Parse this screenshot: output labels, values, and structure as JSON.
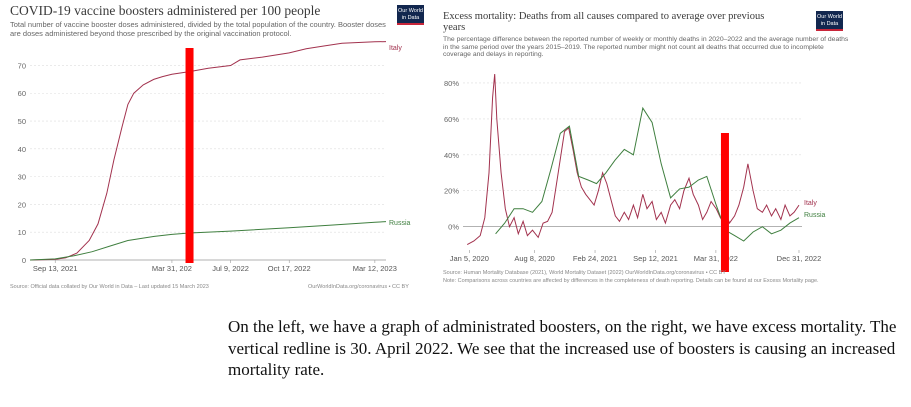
{
  "left": {
    "title": "COVID-19 vaccine boosters administered per 100 people",
    "subtitle": "Total number of vaccine booster doses administered, divided by the total population of the country. Booster doses are doses administered beyond those prescribed by the original vaccination protocol.",
    "logo": "Our World in Data",
    "source": "Source: Official data collated by Our World in Data – Last updated 15 March 2023",
    "url": "OurWorldInData.org/coronavirus • CC BY"
  },
  "right": {
    "title": "Excess mortality: Deaths from all causes compared to average over previous years",
    "subtitle": "The percentage difference between the reported number of weekly or monthly deaths in 2020–2022 and the average number of deaths in the same period over the years 2015–2019. The reported number might not count all deaths that occurred due to incomplete coverage and delays in reporting.",
    "logo": "Our World in Data",
    "source": "Source: Human Mortality Database (2021), World Mortality Dataset (2022)",
    "url": "OurWorldInData.org/coronavirus • CC BY",
    "note": "Note: Comparisons across countries are affected by differences in the completeness of death reporting. Details can be found at our Excess Mortality page."
  },
  "caption": "On the left, we have a graph of administrated boosters, on the right, we have excess mortality. The vertical redline is 30. April 2022. We see that the increased use of boosters is causing an increased mortality rate.",
  "colors": {
    "italy": "#a2324e",
    "russia": "#3f7f3f",
    "marker": "#ff0000",
    "grid": "#dddddd"
  },
  "chart_data": [
    {
      "type": "line",
      "title": "COVID-19 vaccine boosters administered per 100 people",
      "xlabel": "",
      "ylabel": "",
      "x_ticks": [
        "Sep 13, 2021",
        "Mar 31, 202",
        "Jul 9, 2022",
        "Oct 17, 2022",
        "Mar 12, 2023"
      ],
      "x_tick_values": [
        "2021-09-13",
        "2022-03-31",
        "2022-07-09",
        "2022-10-17",
        "2023-03-12"
      ],
      "y_ticks": [
        0,
        10,
        20,
        30,
        40,
        50,
        60,
        70
      ],
      "ylim": [
        0,
        77
      ],
      "xlim": [
        "2021-08-01",
        "2023-03-31"
      ],
      "grid": true,
      "vertical_marker": "2022-04-30",
      "series": [
        {
          "name": "Italy",
          "color": "#a2324e",
          "points": [
            [
              "2021-08-01",
              0
            ],
            [
              "2021-09-13",
              0.2
            ],
            [
              "2021-10-01",
              0.8
            ],
            [
              "2021-10-20",
              2.5
            ],
            [
              "2021-11-10",
              7
            ],
            [
              "2021-11-25",
              13
            ],
            [
              "2021-12-10",
              24
            ],
            [
              "2021-12-22",
              36
            ],
            [
              "2022-01-05",
              48
            ],
            [
              "2022-01-15",
              56
            ],
            [
              "2022-01-25",
              60
            ],
            [
              "2022-02-10",
              63
            ],
            [
              "2022-02-28",
              65
            ],
            [
              "2022-03-15",
              66
            ],
            [
              "2022-03-31",
              66.8
            ],
            [
              "2022-04-30",
              67.8
            ],
            [
              "2022-06-01",
              69
            ],
            [
              "2022-07-09",
              70
            ],
            [
              "2022-07-25",
              72
            ],
            [
              "2022-09-01",
              73
            ],
            [
              "2022-10-17",
              74.5
            ],
            [
              "2022-11-15",
              76
            ],
            [
              "2022-12-15",
              77
            ],
            [
              "2023-01-15",
              78
            ],
            [
              "2023-03-12",
              78.5
            ],
            [
              "2023-03-31",
              78.6
            ]
          ]
        },
        {
          "name": "Russia",
          "color": "#3f7f3f",
          "points": [
            [
              "2021-08-01",
              0
            ],
            [
              "2021-09-13",
              0.4
            ],
            [
              "2021-10-15",
              1.5
            ],
            [
              "2021-11-15",
              3
            ],
            [
              "2021-12-15",
              5
            ],
            [
              "2022-01-15",
              7
            ],
            [
              "2022-03-01",
              8.5
            ],
            [
              "2022-03-31",
              9.2
            ],
            [
              "2022-04-30",
              9.7
            ],
            [
              "2022-07-09",
              10.4
            ],
            [
              "2022-10-17",
              11.6
            ],
            [
              "2022-12-31",
              12.6
            ],
            [
              "2023-03-12",
              13.6
            ],
            [
              "2023-03-31",
              13.8
            ]
          ]
        }
      ]
    },
    {
      "type": "line",
      "title": "Excess mortality: Deaths from all causes compared to average over previous years",
      "xlabel": "",
      "ylabel": "",
      "x_ticks": [
        "Jan 5, 2020",
        "Aug 8, 2020",
        "Feb 24, 2021",
        "Sep 12, 2021",
        "Mar 31, 2022",
        "Dec 31, 2022"
      ],
      "x_tick_values": [
        "2020-01-05",
        "2020-08-08",
        "2021-02-24",
        "2021-09-12",
        "2022-03-31",
        "2022-12-31"
      ],
      "y_ticks": [
        "0%",
        "20%",
        "40%",
        "60%",
        "80%"
      ],
      "y_tick_values": [
        0,
        20,
        40,
        60,
        80
      ],
      "ylim": [
        -13,
        85
      ],
      "xlim": [
        "2019-12-15",
        "2023-01-10"
      ],
      "grid": true,
      "vertical_marker": "2022-04-30",
      "series": [
        {
          "name": "Italy",
          "color": "#a2324e",
          "points": [
            [
              "2019-12-29",
              -10
            ],
            [
              "2020-01-20",
              -8
            ],
            [
              "2020-02-10",
              -5
            ],
            [
              "2020-02-25",
              5
            ],
            [
              "2020-03-10",
              30
            ],
            [
              "2020-03-22",
              72
            ],
            [
              "2020-03-29",
              85
            ],
            [
              "2020-04-05",
              60
            ],
            [
              "2020-04-19",
              30
            ],
            [
              "2020-05-03",
              10
            ],
            [
              "2020-05-17",
              0
            ],
            [
              "2020-06-01",
              5
            ],
            [
              "2020-06-15",
              -4
            ],
            [
              "2020-07-01",
              3
            ],
            [
              "2020-07-15",
              -5
            ],
            [
              "2020-08-01",
              -2
            ],
            [
              "2020-08-20",
              -6
            ],
            [
              "2020-09-05",
              2
            ],
            [
              "2020-09-20",
              3
            ],
            [
              "2020-10-05",
              8
            ],
            [
              "2020-10-25",
              30
            ],
            [
              "2020-11-15",
              53
            ],
            [
              "2020-11-29",
              55
            ],
            [
              "2020-12-13",
              43
            ],
            [
              "2020-12-27",
              30
            ],
            [
              "2021-01-10",
              22
            ],
            [
              "2021-01-24",
              18
            ],
            [
              "2021-02-07",
              15
            ],
            [
              "2021-02-21",
              12
            ],
            [
              "2021-03-07",
              20
            ],
            [
              "2021-03-21",
              30
            ],
            [
              "2021-04-04",
              24
            ],
            [
              "2021-04-18",
              15
            ],
            [
              "2021-05-02",
              6
            ],
            [
              "2021-05-16",
              3
            ],
            [
              "2021-06-01",
              8
            ],
            [
              "2021-06-15",
              4
            ],
            [
              "2021-07-01",
              12
            ],
            [
              "2021-07-15",
              5
            ],
            [
              "2021-08-01",
              18
            ],
            [
              "2021-08-15",
              10
            ],
            [
              "2021-09-01",
              14
            ],
            [
              "2021-09-15",
              4
            ],
            [
              "2021-10-01",
              8
            ],
            [
              "2021-10-15",
              2
            ],
            [
              "2021-11-01",
              12
            ],
            [
              "2021-11-15",
              15
            ],
            [
              "2021-12-01",
              10
            ],
            [
              "2021-12-15",
              20
            ],
            [
              "2022-01-01",
              27
            ],
            [
              "2022-01-15",
              18
            ],
            [
              "2022-02-01",
              12
            ],
            [
              "2022-02-15",
              4
            ],
            [
              "2022-03-01",
              8
            ],
            [
              "2022-03-15",
              14
            ],
            [
              "2022-04-01",
              10
            ],
            [
              "2022-04-15",
              5
            ],
            [
              "2022-05-01",
              8
            ],
            [
              "2022-05-15",
              2
            ],
            [
              "2022-06-01",
              6
            ],
            [
              "2022-06-15",
              12
            ],
            [
              "2022-07-01",
              22
            ],
            [
              "2022-07-15",
              35
            ],
            [
              "2022-08-01",
              20
            ],
            [
              "2022-08-15",
              10
            ],
            [
              "2022-09-01",
              8
            ],
            [
              "2022-09-15",
              12
            ],
            [
              "2022-10-01",
              6
            ],
            [
              "2022-10-15",
              10
            ],
            [
              "2022-11-01",
              4
            ],
            [
              "2022-11-15",
              12
            ],
            [
              "2022-12-01",
              6
            ],
            [
              "2022-12-15",
              8
            ],
            [
              "2022-12-31",
              12
            ]
          ]
        },
        {
          "name": "Russia",
          "color": "#3f7f3f",
          "points": [
            [
              "2020-04-01",
              -4
            ],
            [
              "2020-05-01",
              2
            ],
            [
              "2020-06-01",
              10
            ],
            [
              "2020-07-01",
              10
            ],
            [
              "2020-08-01",
              8
            ],
            [
              "2020-09-01",
              14
            ],
            [
              "2020-10-01",
              32
            ],
            [
              "2020-11-01",
              52
            ],
            [
              "2020-12-01",
              56
            ],
            [
              "2021-01-01",
              28
            ],
            [
              "2021-02-01",
              26
            ],
            [
              "2021-03-01",
              24
            ],
            [
              "2021-04-01",
              30
            ],
            [
              "2021-05-01",
              37
            ],
            [
              "2021-06-01",
              43
            ],
            [
              "2021-07-01",
              40
            ],
            [
              "2021-08-01",
              66
            ],
            [
              "2021-09-01",
              58
            ],
            [
              "2021-10-01",
              35
            ],
            [
              "2021-11-01",
              16
            ],
            [
              "2021-12-01",
              21
            ],
            [
              "2022-01-01",
              22
            ],
            [
              "2022-02-01",
              26
            ],
            [
              "2022-03-01",
              28
            ],
            [
              "2022-04-01",
              12
            ],
            [
              "2022-05-01",
              -2
            ],
            [
              "2022-06-01",
              -5
            ],
            [
              "2022-07-01",
              -8
            ],
            [
              "2022-08-01",
              -3
            ],
            [
              "2022-09-01",
              0
            ],
            [
              "2022-10-01",
              -4
            ],
            [
              "2022-11-01",
              -2
            ],
            [
              "2022-12-01",
              2
            ],
            [
              "2022-12-31",
              5
            ]
          ]
        }
      ]
    }
  ]
}
